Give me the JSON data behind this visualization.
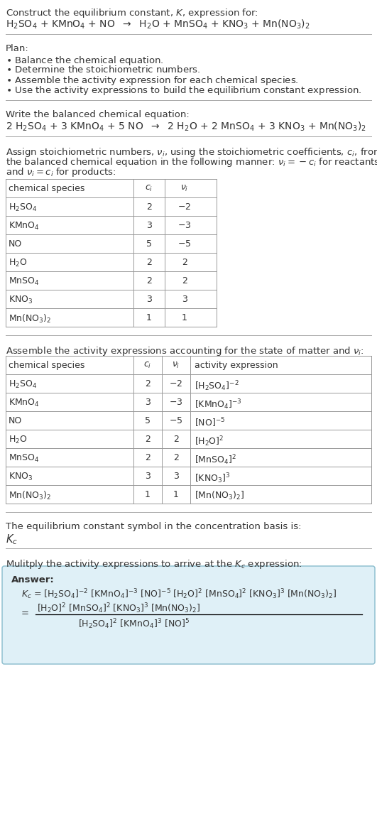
{
  "bg_color": "#ffffff",
  "text_color": "#333333",
  "table_line_color": "#999999",
  "answer_box_color": "#dff0f7",
  "answer_box_edge": "#88bbcc",
  "fs": 9.5,
  "title_line1": "Construct the equilibrium constant, $K$, expression for:",
  "title_line2": "H$_2$SO$_4$ + KMnO$_4$ + NO  $\\rightarrow$  H$_2$O + MnSO$_4$ + KNO$_3$ + Mn(NO$_3$)$_2$",
  "plan_header": "Plan:",
  "plan_items": [
    "$\\bullet$ Balance the chemical equation.",
    "$\\bullet$ Determine the stoichiometric numbers.",
    "$\\bullet$ Assemble the activity expression for each chemical species.",
    "$\\bullet$ Use the activity expressions to build the equilibrium constant expression."
  ],
  "balanced_header": "Write the balanced chemical equation:",
  "balanced_eq": "2 H$_2$SO$_4$ + 3 KMnO$_4$ + 5 NO  $\\rightarrow$  2 H$_2$O + 2 MnSO$_4$ + 3 KNO$_3$ + Mn(NO$_3$)$_2$",
  "stoich_intro": "Assign stoichiometric numbers, $\\nu_i$, using the stoichiometric coefficients, $c_i$, from the balanced chemical equation in the following manner: $\\nu_i = -c_i$ for reactants and $\\nu_i = c_i$ for products:",
  "stoich_cols": [
    "chemical species",
    "$c_i$",
    "$\\nu_i$"
  ],
  "stoich_rows": [
    [
      "H$_2$SO$_4$",
      "2",
      "$-2$"
    ],
    [
      "KMnO$_4$",
      "3",
      "$-3$"
    ],
    [
      "NO",
      "5",
      "$-5$"
    ],
    [
      "H$_2$O",
      "2",
      "2"
    ],
    [
      "MnSO$_4$",
      "2",
      "2"
    ],
    [
      "KNO$_3$",
      "3",
      "3"
    ],
    [
      "Mn(NO$_3$)$_2$",
      "1",
      "1"
    ]
  ],
  "activity_header": "Assemble the activity expressions accounting for the state of matter and $\\nu_i$:",
  "activity_cols": [
    "chemical species",
    "$c_i$",
    "$\\nu_i$",
    "activity expression"
  ],
  "activity_rows": [
    [
      "H$_2$SO$_4$",
      "2",
      "$-2$",
      "[H$_2$SO$_4$]$^{-2}$"
    ],
    [
      "KMnO$_4$",
      "3",
      "$-3$",
      "[KMnO$_4$]$^{-3}$"
    ],
    [
      "NO",
      "5",
      "$-5$",
      "[NO]$^{-5}$"
    ],
    [
      "H$_2$O",
      "2",
      "2",
      "[H$_2$O]$^2$"
    ],
    [
      "MnSO$_4$",
      "2",
      "2",
      "[MnSO$_4$]$^2$"
    ],
    [
      "KNO$_3$",
      "3",
      "3",
      "[KNO$_3$]$^3$"
    ],
    [
      "Mn(NO$_3$)$_2$",
      "1",
      "1",
      "[Mn(NO$_3$)$_2$]"
    ]
  ],
  "kc_header": "The equilibrium constant symbol in the concentration basis is:",
  "kc_symbol": "$K_c$",
  "multiply_header": "Mulitply the activity expressions to arrive at the $K_c$ expression:",
  "answer_label": "Answer:",
  "kc_eq1": "$K_c$ = [H$_2$SO$_4$]$^{-2}$ [KMnO$_4$]$^{-3}$ [NO]$^{-5}$ [H$_2$O]$^2$ [MnSO$_4$]$^2$ [KNO$_3$]$^3$ [Mn(NO$_3$)$_2$]",
  "kc_num": "[H$_2$O]$^2$ [MnSO$_4$]$^2$ [KNO$_3$]$^3$ [Mn(NO$_3$)$_2$]",
  "kc_den": "[H$_2$SO$_4$]$^2$ [KMnO$_4$]$^3$ [NO]$^5$"
}
